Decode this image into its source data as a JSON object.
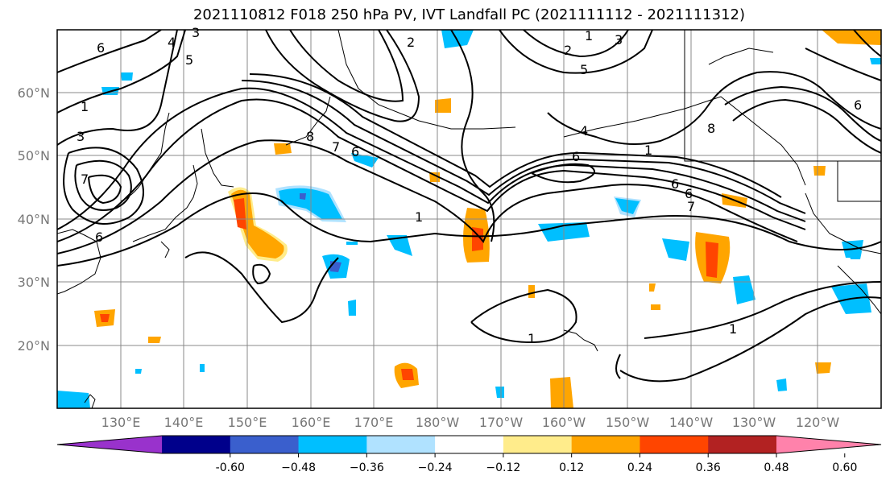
{
  "title": "2021110812 F018 250 hPa PV, IVT Landfall PC (2021111112 - 2021111312)",
  "lat_labels": [
    "60°N",
    "50°N",
    "40°N",
    "30°N",
    "20°N"
  ],
  "lon_labels": [
    "130°E",
    "140°E",
    "150°E",
    "160°E",
    "170°E",
    "180°W",
    "170°W",
    "160°W",
    "150°W",
    "140°W",
    "130°W",
    "120°W"
  ],
  "colorbar": {
    "ticks": [
      "-0.60",
      "−0.48",
      "−0.36",
      "−0.24",
      "−0.12",
      "0.12",
      "0.24",
      "0.36",
      "0.48",
      "0.60"
    ],
    "colors": [
      "#9932cc",
      "#00008b",
      "#3a5fcd",
      "#00bfff",
      "#b0e2ff",
      "#ffffff",
      "#ffec8b",
      "#ffa500",
      "#ff4500",
      "#b22222",
      "#ff82ab"
    ]
  },
  "contour_labels": [
    "6",
    "4",
    "5",
    "3",
    "2",
    "1",
    "3",
    "6",
    "7",
    "8",
    "7",
    "6",
    "1",
    "2",
    "3",
    "1",
    "1",
    "6",
    "4",
    "6",
    "7",
    "6",
    "5",
    "1",
    "8",
    "6",
    "1"
  ],
  "colors": {
    "contour": "#000000",
    "grid": "#888888",
    "coast": "#000000"
  }
}
